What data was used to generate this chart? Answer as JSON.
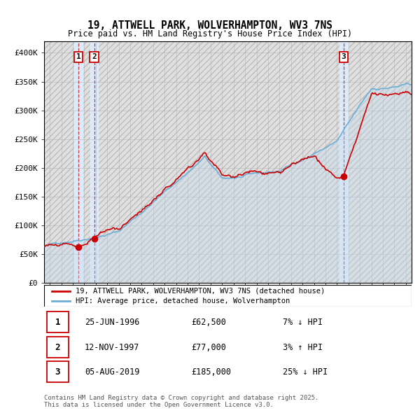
{
  "title": "19, ATTWELL PARK, WOLVERHAMPTON, WV3 7NS",
  "subtitle": "Price paid vs. HM Land Registry's House Price Index (HPI)",
  "legend_line1": "19, ATTWELL PARK, WOLVERHAMPTON, WV3 7NS (detached house)",
  "legend_line2": "HPI: Average price, detached house, Wolverhampton",
  "footnote": "Contains HM Land Registry data © Crown copyright and database right 2025.\nThis data is licensed under the Open Government Licence v3.0.",
  "transactions": [
    {
      "num": 1,
      "date": "25-JUN-1996",
      "price": 62500,
      "pct": "7%",
      "dir": "↓",
      "year": 1996.48
    },
    {
      "num": 2,
      "date": "12-NOV-1997",
      "price": 77000,
      "pct": "3%",
      "dir": "↑",
      "year": 1997.86
    },
    {
      "num": 3,
      "date": "05-AUG-2019",
      "price": 185000,
      "pct": "25%",
      "dir": "↓",
      "year": 2019.59
    }
  ],
  "hpi_color": "#6baed6",
  "hpi_fill_color": "#c6dbef",
  "price_color": "#cc0000",
  "vline_color": "#cc0000",
  "vband_color": "#ddeeff",
  "grid_color": "#aaaaaa",
  "ylim": [
    0,
    420000
  ],
  "yticks": [
    0,
    50000,
    100000,
    150000,
    200000,
    250000,
    300000,
    350000,
    400000
  ],
  "ytick_labels": [
    "£0",
    "£50K",
    "£100K",
    "£150K",
    "£200K",
    "£250K",
    "£300K",
    "£350K",
    "£400K"
  ],
  "xmin": 1993.5,
  "xmax": 2025.5,
  "xticks": [
    1994,
    1995,
    1996,
    1997,
    1998,
    1999,
    2000,
    2001,
    2002,
    2003,
    2004,
    2005,
    2006,
    2007,
    2008,
    2009,
    2010,
    2011,
    2012,
    2013,
    2014,
    2015,
    2016,
    2017,
    2018,
    2019,
    2020,
    2021,
    2022,
    2023,
    2024,
    2025
  ]
}
